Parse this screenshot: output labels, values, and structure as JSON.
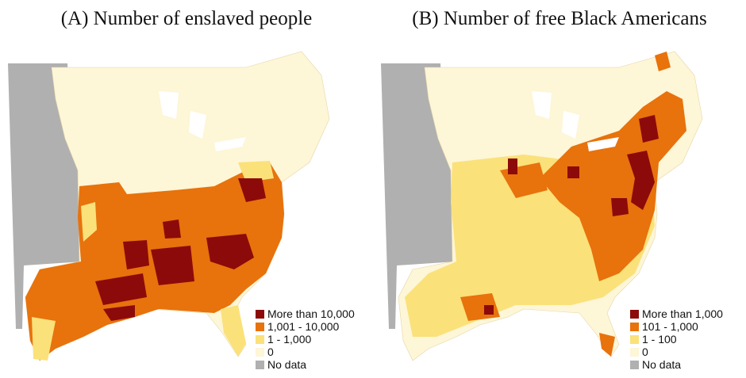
{
  "colors": {
    "dark_red": "#8c0a0a",
    "orange": "#e8720c",
    "yellow": "#fbe17a",
    "cream": "#fdf6d7",
    "nodata": "#b0b0b0",
    "border": "#c9a877"
  },
  "panels": [
    {
      "title": "(A) Number of enslaved people",
      "legend": [
        {
          "label": "More than 10,000",
          "color": "#8c0a0a"
        },
        {
          "label": "1,001 - 10,000",
          "color": "#e8720c"
        },
        {
          "label": "1 - 1,000",
          "color": "#fbe17a"
        },
        {
          "label": "0",
          "color": "#fdf6d7"
        },
        {
          "label": "No data",
          "color": "#b0b0b0"
        }
      ]
    },
    {
      "title": "(B) Number of free Black Americans",
      "legend": [
        {
          "label": "More than 1,000",
          "color": "#8c0a0a"
        },
        {
          "label": "101 - 1,000",
          "color": "#e8720c"
        },
        {
          "label": "1 - 100",
          "color": "#fbe17a"
        },
        {
          "label": "0",
          "color": "#fdf6d7"
        },
        {
          "label": "No data",
          "color": "#b0b0b0"
        }
      ]
    }
  ]
}
